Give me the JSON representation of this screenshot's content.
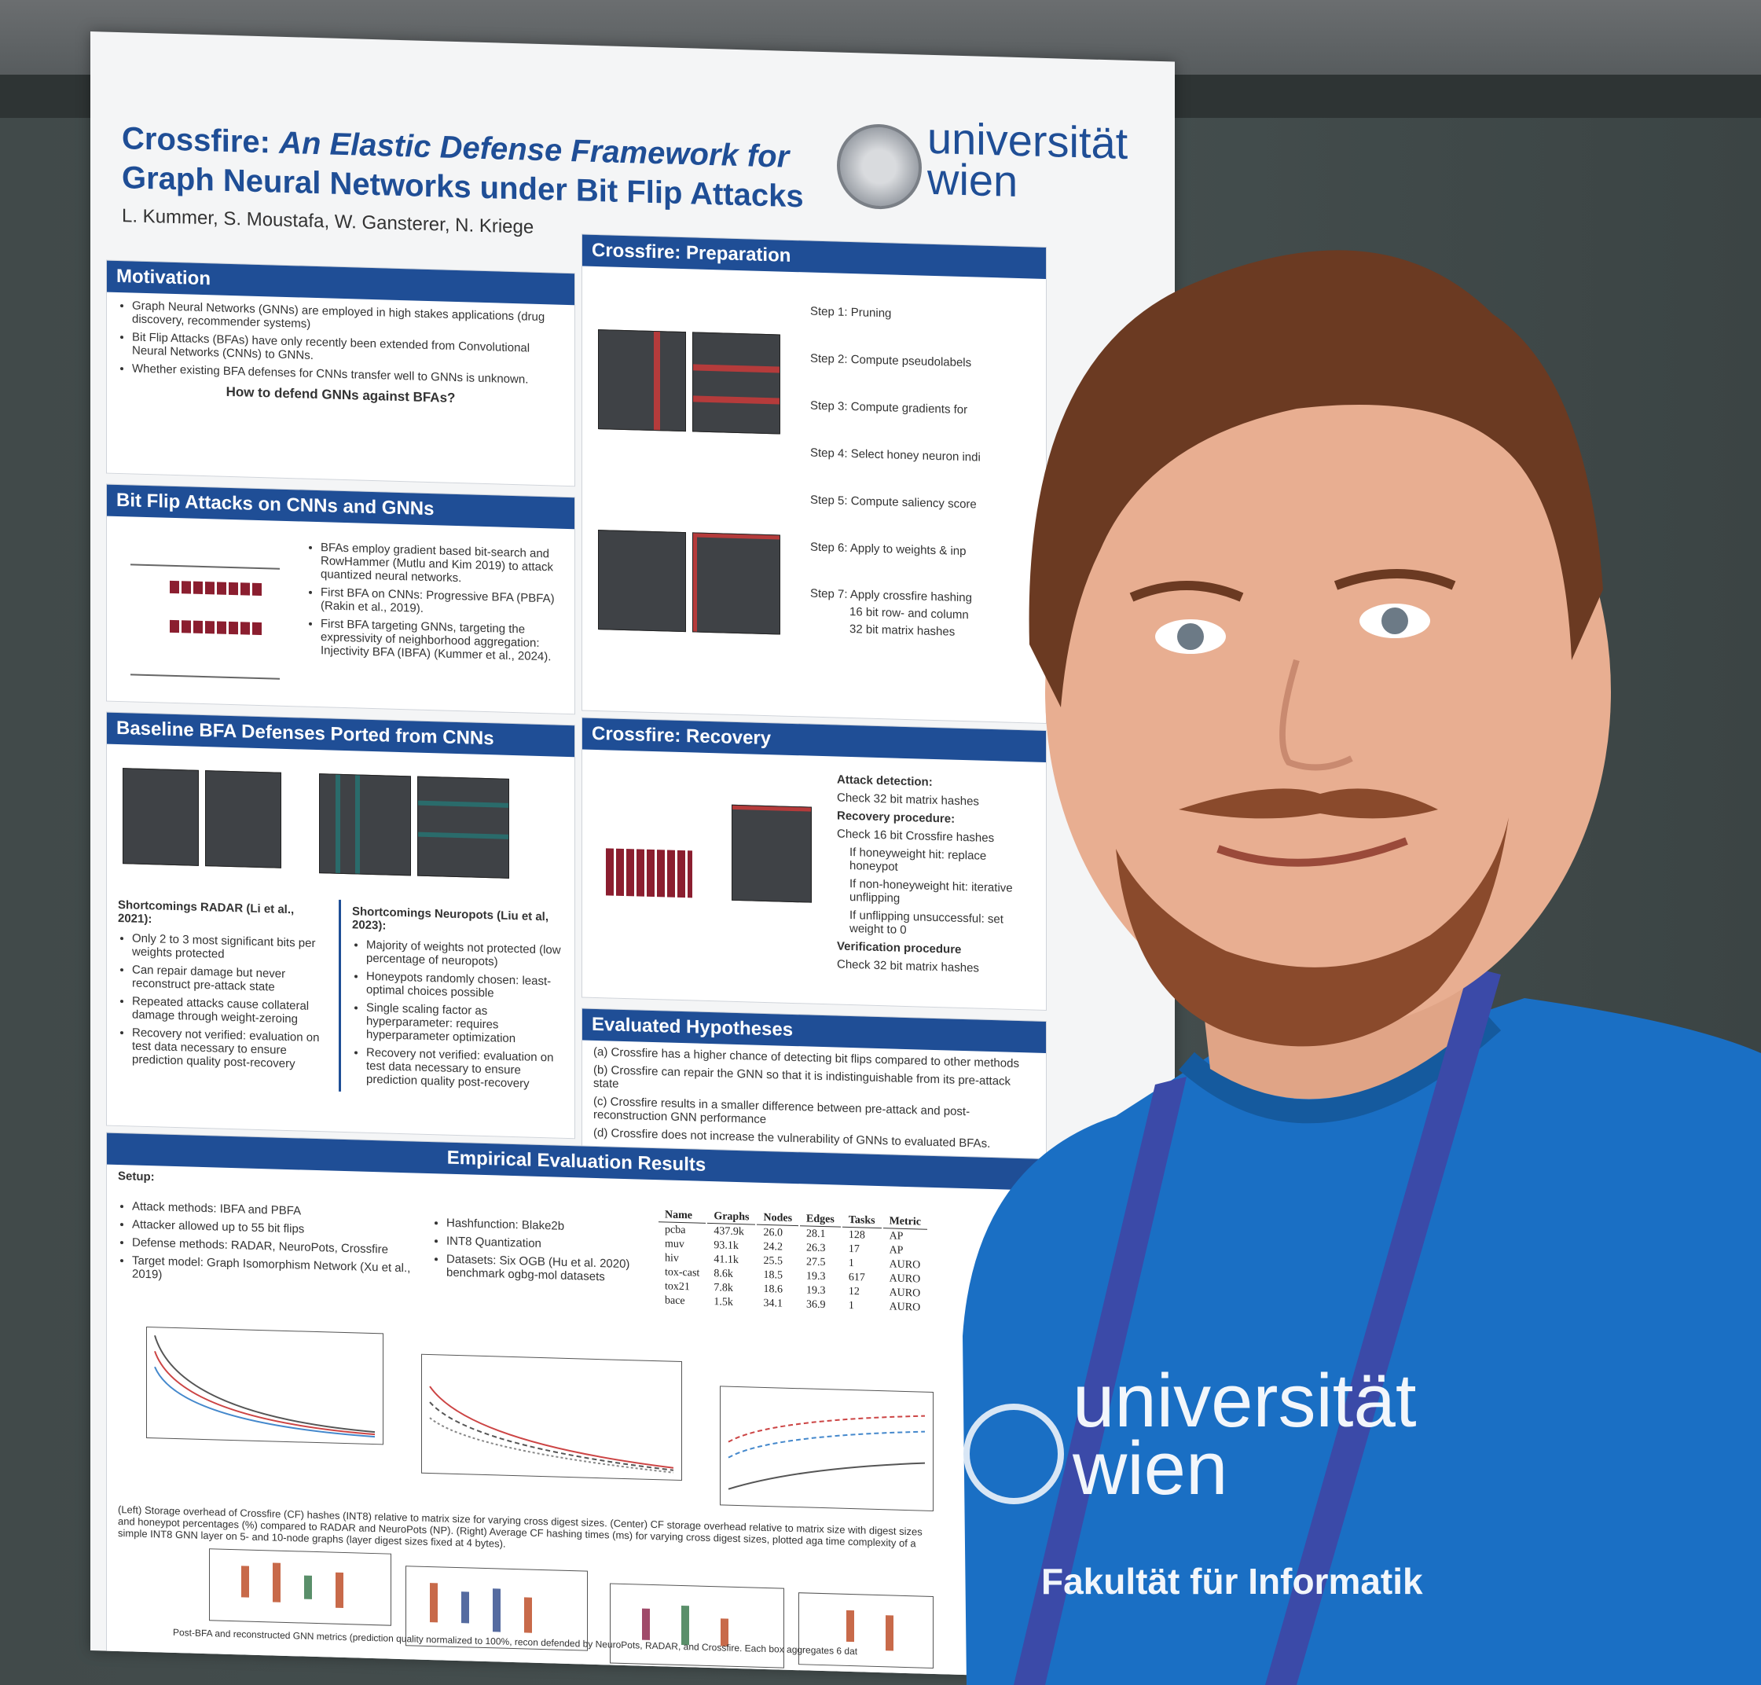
{
  "poster": {
    "title_line1_a": "Crossfire: ",
    "title_line1_b": "An Elastic Defense Framework for",
    "title_line2": "Graph Neural Networks under Bit Flip Attacks",
    "authors": "L. Kummer, S. Moustafa, W. Gansterer, N. Kriege",
    "logo_text_1": "universität",
    "logo_text_2": "wien",
    "sections": {
      "motivation": {
        "heading": "Motivation",
        "bullets": [
          "Graph Neural Networks (GNNs) are employed in high stakes applications (drug discovery, recommender systems)",
          "Bit Flip Attacks (BFAs) have only recently been extended from Convolutional Neural Networks (CNNs) to GNNs.",
          "Whether existing BFA defenses for CNNs transfer well to GNNs is unknown."
        ],
        "question": "How to defend GNNs against BFAs?"
      },
      "bfa": {
        "heading": "Bit Flip Attacks on CNNs and GNNs",
        "bullets": [
          "BFAs employ gradient based bit-search and RowHammer (Mutlu and Kim 2019) to attack quantized neural networks.",
          "First BFA on CNNs: Progressive BFA (PBFA) (Rakin et al., 2019).",
          "First BFA targeting GNNs, targeting the expressivity of neighborhood aggregation: Injectivity BFA (IBFA) (Kummer et al., 2024)."
        ]
      },
      "baseline": {
        "heading": "Baseline BFA Defenses Ported from CNNs",
        "radar_title": "Shortcomings RADAR (Li et al., 2021):",
        "radar_bullets": [
          "Only 2 to 3 most significant bits per weights protected",
          "Can repair damage but never reconstruct pre-attack state",
          "Repeated attacks cause collateral damage through weight-zeroing",
          "Recovery not verified: evaluation on test data necessary to ensure prediction quality post-recovery"
        ],
        "neuro_title": "Shortcomings Neuropots (Liu et al, 2023):",
        "neuro_bullets": [
          "Majority of weights not protected (low percentage of neuropots)",
          "Honeypots randomly chosen: least-optimal choices possible",
          "Single scaling factor as hyperparameter: requires hyperparameter optimization",
          "Recovery not verified: evaluation on test data necessary to ensure prediction quality post-recovery"
        ]
      },
      "prep": {
        "heading": "Crossfire: Preparation",
        "steps": [
          "Step 1: Pruning",
          "Step 2: Compute pseudolabels",
          "Step 3: Compute gradients for",
          "Step 4: Select honey neuron indi",
          "Step 5: Compute saliency score",
          "Step 6: Apply to weights & inp",
          "Step 7: Apply crossfire hashing",
          "16 bit row- and column",
          "32 bit matrix hashes"
        ]
      },
      "recovery": {
        "heading": "Crossfire: Recovery",
        "attack_title": "Attack detection:",
        "attack_bullet": "Check 32 bit matrix hashes",
        "recovery_title": "Recovery procedure:",
        "recovery_lines": [
          "Check 16 bit Crossfire hashes",
          "If honeyweight hit: replace honeypot",
          "If non-honeyweight hit: iterative unflipping",
          "If unflipping unsuccessful: set weight to 0"
        ],
        "verify_title": "Verification procedure",
        "verify_bullet": "Check 32 bit matrix hashes"
      },
      "hypotheses": {
        "heading": "Evaluated Hypotheses",
        "items": [
          "(a) Crossfire has a higher chance of detecting bit flips compared to other methods",
          "(b) Crossfire can repair the GNN so that it is indistinguishable from its pre-attack state",
          "(c) Crossfire results in a smaller difference between pre-attack and post-reconstruction GNN performance",
          "(d) Crossfire does not increase the vulnerability of GNNs to evaluated BFAs."
        ]
      },
      "results": {
        "heading": "Empirical Evaluation Results",
        "setup": "Setup:",
        "setup_bullets": [
          "Attack methods: IBFA and PBFA",
          "Attacker allowed up to 55 bit flips",
          "Defense methods: RADAR, NeuroPots, Crossfire",
          "Target model: Graph Isomorphism Network (Xu et al., 2019)"
        ],
        "setup_bullets_2": [
          "Hashfunction: Blake2b",
          "INT8 Quantization",
          "Datasets: Six OGB (Hu et al. 2020) benchmark ogbg-mol datasets"
        ],
        "table_headers": [
          "Name",
          "Graphs",
          "Nodes",
          "Edges",
          "Tasks",
          "Metric"
        ],
        "table_rows": [
          [
            "pcba",
            "437.9k",
            "26.0",
            "28.1",
            "128",
            "AP"
          ],
          [
            "muv",
            "93.1k",
            "24.2",
            "26.3",
            "17",
            "AP"
          ],
          [
            "hiv",
            "41.1k",
            "25.5",
            "27.5",
            "1",
            "AURO"
          ],
          [
            "tox-cast",
            "8.6k",
            "18.5",
            "19.3",
            "617",
            "AURO"
          ],
          [
            "tox21",
            "7.8k",
            "18.6",
            "19.3",
            "12",
            "AURO"
          ],
          [
            "bace",
            "1.5k",
            "34.1",
            "36.9",
            "1",
            "AURO"
          ]
        ],
        "caption": "(Left) Storage overhead of Crossfire (CF) hashes (INT8) relative to matrix size for varying cross digest sizes. (Center) CF storage overhead relative to matrix size with digest sizes and honeypot percentages (%) compared to RADAR and NeuroPots (NP). (Right) Average CF hashing times (ms) for varying cross digest sizes, plotted aga time complexity of a simple INT8 GNN layer on 5- and 10-node graphs (layer digest sizes fixed at 4 bytes).",
        "bottom_caption": "Post-BFA and reconstructed GNN metrics (prediction quality normalized to 100%, recon defended by NeuroPots, RADAR, and Crossfire. Each box aggregates 6 dat"
      }
    }
  },
  "shirt": {
    "logo_1": "universität",
    "logo_2": "wien",
    "faculty": "Fakultät für Informatik"
  },
  "colors": {
    "poster_blue": "#1f4e96",
    "shirt_blue": "#1a6fc4",
    "wall": "#414a4a",
    "lanyard": "#3b4aa8"
  }
}
